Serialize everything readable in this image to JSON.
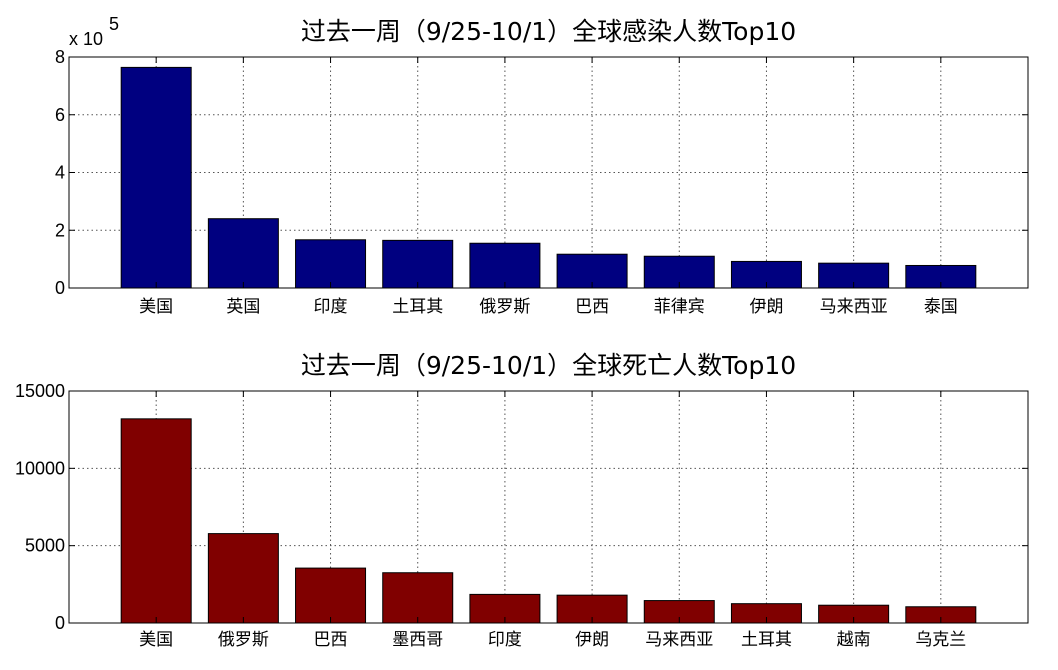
{
  "chart_data": [
    {
      "type": "bar",
      "title": "过去一周（9/25-10/1）全球感染人数Top10",
      "categories": [
        "美国",
        "英国",
        "印度",
        "土耳其",
        "俄罗斯",
        "巴西",
        "菲律宾",
        "伊朗",
        "马来西亚",
        "泰国"
      ],
      "values": [
        764000,
        240000,
        167000,
        165000,
        155000,
        117000,
        110000,
        92000,
        86000,
        78000
      ],
      "ylim": [
        0,
        800000
      ],
      "yticks": [
        0,
        200000,
        400000,
        600000,
        800000
      ],
      "ytick_labels": [
        "0",
        "2",
        "4",
        "6",
        "8"
      ],
      "y_multiplier_text": "x 10",
      "y_multiplier_exponent": "5",
      "grid": true,
      "bar_color": "#000080"
    },
    {
      "type": "bar",
      "title": "过去一周（9/25-10/1）全球死亡人数Top10",
      "categories": [
        "美国",
        "俄罗斯",
        "巴西",
        "墨西哥",
        "印度",
        "伊朗",
        "马来西亚",
        "土耳其",
        "越南",
        "乌克兰"
      ],
      "values": [
        13200,
        5780,
        3550,
        3250,
        1850,
        1800,
        1450,
        1250,
        1150,
        1050
      ],
      "ylim": [
        0,
        15000
      ],
      "yticks": [
        0,
        5000,
        10000,
        15000
      ],
      "ytick_labels": [
        "0",
        "5000",
        "10000",
        "15000"
      ],
      "grid": true,
      "bar_color": "#800000"
    }
  ]
}
